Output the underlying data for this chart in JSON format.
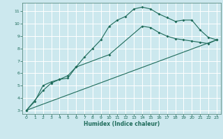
{
  "xlabel": "Humidex (Indice chaleur)",
  "bg_color": "#cce8ee",
  "grid_color": "#ffffff",
  "line_color": "#1e6b5a",
  "xlim": [
    -0.5,
    23.5
  ],
  "ylim": [
    2.7,
    11.7
  ],
  "xticks": [
    0,
    1,
    2,
    3,
    4,
    5,
    6,
    7,
    8,
    9,
    10,
    11,
    12,
    13,
    14,
    15,
    16,
    17,
    18,
    19,
    20,
    21,
    22,
    23
  ],
  "yticks": [
    3,
    4,
    5,
    6,
    7,
    8,
    9,
    10,
    11
  ],
  "line1_x": [
    0,
    1,
    2,
    3,
    4,
    5,
    6,
    7,
    8,
    9,
    10,
    11,
    12,
    13,
    14,
    15,
    16,
    17,
    18,
    19,
    20,
    21,
    22,
    23
  ],
  "line1_y": [
    3.0,
    3.7,
    5.0,
    5.3,
    5.5,
    5.6,
    6.5,
    7.3,
    8.0,
    8.7,
    9.8,
    10.3,
    10.6,
    11.2,
    11.35,
    11.2,
    10.8,
    10.5,
    10.2,
    10.3,
    10.3,
    9.5,
    8.9,
    8.7
  ],
  "line2_x": [
    0,
    2,
    3,
    4,
    5,
    6,
    10,
    14,
    15,
    16,
    17,
    18,
    19,
    20,
    21,
    22,
    23
  ],
  "line2_y": [
    3.0,
    4.6,
    5.2,
    5.5,
    5.8,
    6.5,
    7.5,
    9.8,
    9.7,
    9.3,
    9.0,
    8.8,
    8.7,
    8.6,
    8.5,
    8.4,
    8.7
  ],
  "line3_x": [
    0,
    23
  ],
  "line3_y": [
    3.0,
    8.7
  ]
}
